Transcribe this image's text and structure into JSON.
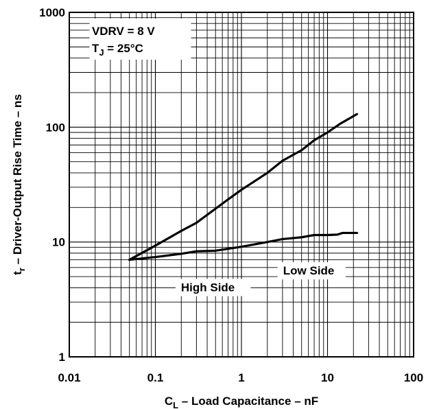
{
  "chart_data": {
    "type": "line",
    "title": "",
    "x_scale": "log",
    "y_scale": "log",
    "xlim": [
      0.01,
      100
    ],
    "ylim": [
      1,
      1000
    ],
    "grid": true,
    "x_ticks": [
      "0.01",
      "0.1",
      "1",
      "10",
      "100"
    ],
    "y_ticks": [
      "1",
      "10",
      "100",
      "1000"
    ],
    "xlabel": {
      "main": "C",
      "sub": "L",
      "rest": " – Load Capacitance – nF"
    },
    "ylabel": {
      "main": "t",
      "sub": "r",
      "rest": " – Driver-Output Rise Time – ns"
    },
    "conditions": [
      {
        "main": "VDRV = 8 V",
        "sub": "",
        "rest": ""
      },
      {
        "main": "T",
        "sub": "J",
        "rest": " = 25°C"
      }
    ],
    "series": [
      {
        "name": "High Side",
        "points": [
          [
            0.05,
            7
          ],
          [
            0.1,
            9.3
          ],
          [
            0.2,
            12.5
          ],
          [
            0.3,
            14.7
          ],
          [
            0.5,
            19.5
          ],
          [
            0.7,
            23.5
          ],
          [
            1,
            28.5
          ],
          [
            2,
            40
          ],
          [
            3,
            51
          ],
          [
            5,
            63
          ],
          [
            7,
            77
          ],
          [
            10,
            90
          ],
          [
            14,
            107
          ],
          [
            22,
            130
          ]
        ]
      },
      {
        "name": "Low Side",
        "points": [
          [
            0.05,
            7
          ],
          [
            0.1,
            7.4
          ],
          [
            0.2,
            7.9
          ],
          [
            0.3,
            8.3
          ],
          [
            0.5,
            8.4
          ],
          [
            1,
            9.1
          ],
          [
            2,
            10
          ],
          [
            3,
            10.6
          ],
          [
            5,
            11
          ],
          [
            7,
            11.5
          ],
          [
            10,
            11.5
          ],
          [
            13,
            11.6
          ],
          [
            15,
            12
          ],
          [
            22,
            12
          ]
        ]
      }
    ]
  }
}
